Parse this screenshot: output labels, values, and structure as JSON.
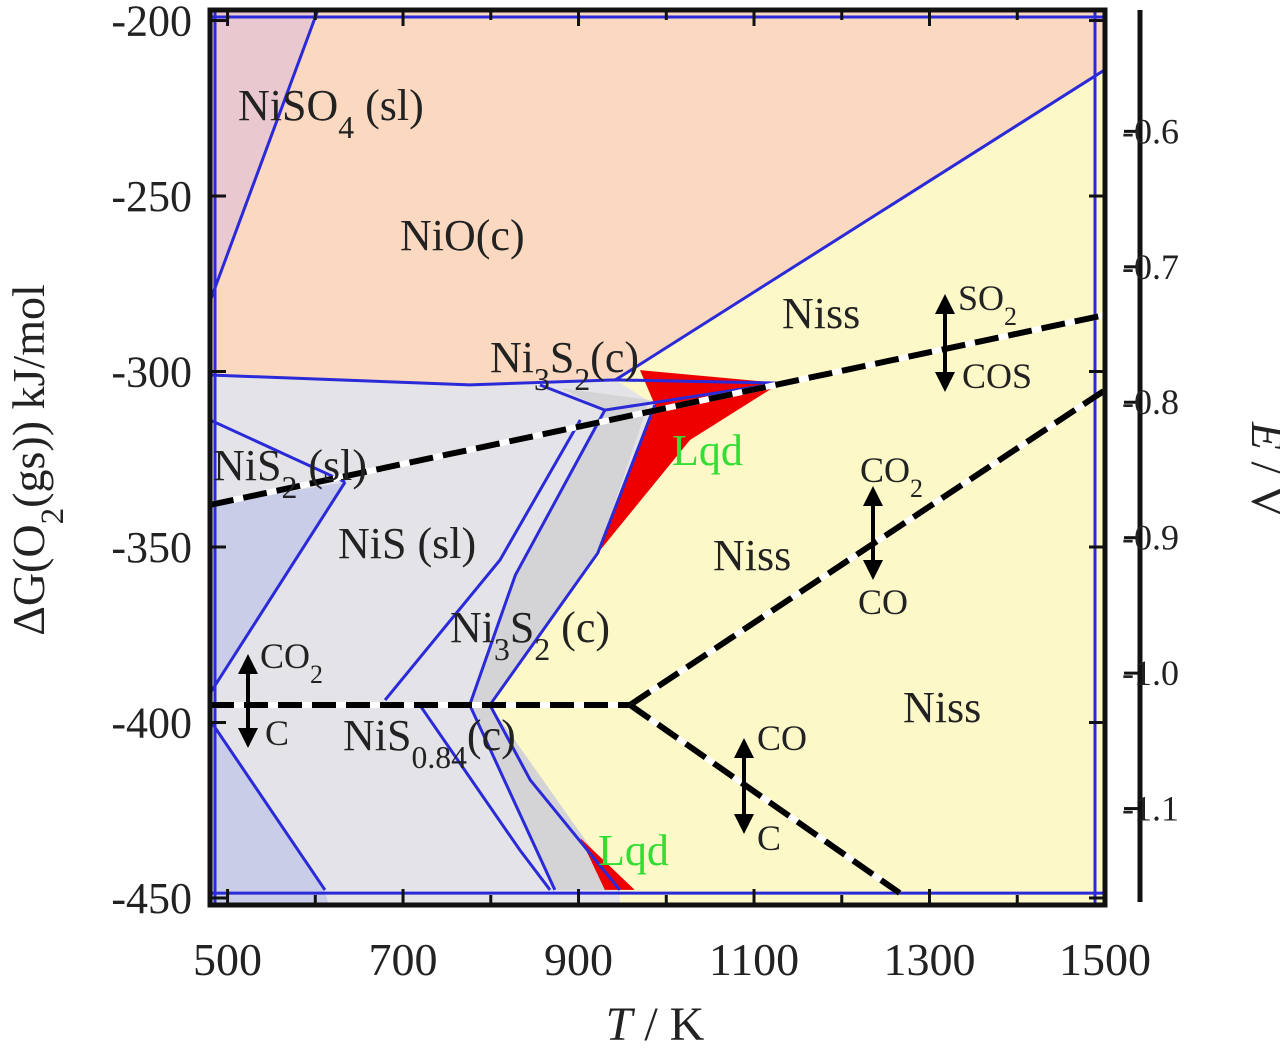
{
  "chart_data": {
    "type": "phase",
    "xlim": [
      480,
      1500
    ],
    "ylim": [
      -452,
      -197
    ],
    "xticks": [
      500,
      700,
      900,
      1100,
      1300,
      1500
    ],
    "xminor_ticks": [
      600,
      800,
      1000,
      1200,
      1400
    ],
    "yticks": [
      -200,
      -250,
      -300,
      -350,
      -400,
      -450
    ],
    "y2lim": [
      -1.1712,
      -0.5104
    ],
    "y2ticks": [
      -0.6,
      -0.7,
      -0.8,
      -0.9,
      {
        "value": -1,
        "label": "-1.0"
      },
      -1.1
    ],
    "xlabel": {
      "symbol": "T",
      "unit": " / K"
    },
    "ylabel": [
      "ΔG(O",
      "2",
      "(gs)) kJ/mol"
    ],
    "y2label": {
      "symbol": "E",
      "unit": " / V"
    },
    "background": "#fdf8c8",
    "regions": [
      {
        "color": "#e9c9cf",
        "T": [
          480,
          603,
          480
        ],
        "G": [
          -197,
          -197,
          -280
        ]
      },
      {
        "color": "#fbd9c0",
        "T": [
          603,
          1500,
          1500,
          942,
          776,
          480,
          480
        ],
        "G": [
          -197,
          -197,
          -214,
          -302.4,
          -303.8,
          -301,
          -280
        ]
      },
      {
        "color": "#e4e4e8",
        "T": [
          480,
          776,
          942,
          987,
          922,
          799,
          845,
          947,
          947,
          480
        ],
        "G": [
          -301,
          -303.8,
          -302.4,
          -309.5,
          -351.7,
          -395,
          -416.4,
          -447.7,
          -452,
          -452
        ]
      },
      {
        "color": "#d4d4d6",
        "T": [
          879,
          981,
          922,
          799,
          924,
          947,
          873,
          776,
          828,
          930
        ],
        "G": [
          -304.7,
          -308.1,
          -351.7,
          -395,
          -439.2,
          -447.7,
          -447.7,
          -395,
          -358,
          -311
        ]
      },
      {
        "color": "#c9cde8",
        "T": [
          480,
          634,
          480
        ],
        "G": [
          -338,
          -331.5,
          -391.7
        ]
      },
      {
        "color": "#c9cde8",
        "T": [
          480,
          611,
          615,
          480
        ],
        "G": [
          -399.3,
          -447.7,
          -452,
          -452
        ]
      },
      {
        "color": "#ee0000",
        "T": [
          970,
          1130,
          1027,
          922,
          987
        ],
        "G": [
          -299.6,
          -303.3,
          -319.5,
          -351.7,
          -309.5
        ]
      },
      {
        "color": "#ee0000",
        "T": [
          902,
          964,
          930
        ],
        "G": [
          -432.9,
          -447.7,
          -447.7
        ]
      }
    ],
    "boundary_color": "#2a2ad8",
    "boundaries": [
      {
        "T": [
          603,
          480
        ],
        "G": [
          -197,
          -280
        ]
      },
      {
        "T": [
          480,
          776,
          942,
          1130
        ],
        "G": [
          -301,
          -303.8,
          -302.4,
          -303.3
        ]
      },
      {
        "T": [
          942,
          1500
        ],
        "G": [
          -302.4,
          -214
        ]
      },
      {
        "T": [
          480,
          634
        ],
        "G": [
          -313.8,
          -331.5
        ]
      },
      {
        "T": [
          634,
          480
        ],
        "G": [
          -331.5,
          -391.7
        ]
      },
      {
        "T": [
          480,
          611
        ],
        "G": [
          -399.3,
          -447.7
        ]
      },
      {
        "T": [
          856,
          930,
          1130
        ],
        "G": [
          -303.8,
          -311,
          -303.3
        ]
      },
      {
        "T": [
          930,
          828,
          776,
          873
        ],
        "G": [
          -311,
          -358,
          -395,
          -447.7
        ]
      },
      {
        "T": [
          902,
          810.5,
          679.5
        ],
        "G": [
          -313.8,
          -353.7,
          -393.6
        ]
      },
      {
        "T": [
          987,
          922,
          799,
          845,
          947
        ],
        "G": [
          -309.5,
          -351.7,
          -395,
          -416.4,
          -447.7
        ]
      },
      {
        "T": [
          719,
          833,
          867.5
        ],
        "G": [
          -395,
          -436.3,
          -447.7
        ]
      },
      {
        "T": [
          480,
          1500
        ],
        "G": [
          -199,
          -199
        ]
      },
      {
        "T": [
          480,
          1500
        ],
        "G": [
          -448.6,
          -448.6
        ]
      },
      {
        "T": [
          485.7,
          485.7
        ],
        "G": [
          -197,
          -452
        ]
      },
      {
        "T": [
          1488.6,
          1488.6
        ],
        "G": [
          -197,
          -452
        ]
      }
    ],
    "equilibria_color": "#000000",
    "equilibria": [
      {
        "T": [
          480,
          1500
        ],
        "G": [
          -338,
          -283.9
        ]
      },
      {
        "T": [
          958.7,
          1500
        ],
        "G": [
          -395,
          -305.3
        ]
      },
      {
        "T": [
          480,
          958.7
        ],
        "G": [
          -395,
          -395
        ]
      },
      {
        "T": [
          958.7,
          1266
        ],
        "G": [
          -395,
          -448.6
        ]
      }
    ],
    "labels": [
      {
        "pieces": [
          "NiSO",
          "4",
          " (sl)"
        ],
        "color": "#222222"
      },
      {
        "pieces": [
          "NiO(c)"
        ],
        "color": "#222222"
      },
      {
        "pieces": [
          "Niss"
        ],
        "color": "#222222"
      },
      {
        "pieces": [
          "Ni",
          "3",
          "S",
          "2",
          "(c)"
        ],
        "color": "#222222"
      },
      {
        "pieces": [
          "Lqd"
        ],
        "color": "#33dd33"
      },
      {
        "pieces": [
          "NiS",
          "2",
          " (sl)"
        ],
        "color": "#222222"
      },
      {
        "pieces": [
          "NiS (sl)"
        ],
        "color": "#222222"
      },
      {
        "pieces": [
          "Niss"
        ],
        "color": "#222222"
      },
      {
        "pieces": [
          "Ni",
          "3",
          "S",
          "2",
          " (c)"
        ],
        "color": "#222222"
      },
      {
        "pieces": [
          "Niss"
        ],
        "color": "#222222"
      },
      {
        "pieces": [
          "NiS",
          "0.84",
          "(c)"
        ],
        "color": "#222222"
      },
      {
        "pieces": [
          "Lqd"
        ],
        "color": "#33dd33"
      }
    ],
    "gas_labels": [
      [
        "SO",
        "2"
      ],
      [
        "COS"
      ],
      [
        "CO",
        "2"
      ],
      [
        "CO"
      ],
      [
        "CO",
        "2"
      ],
      [
        "C"
      ],
      [
        "CO"
      ],
      [
        "C"
      ]
    ]
  }
}
